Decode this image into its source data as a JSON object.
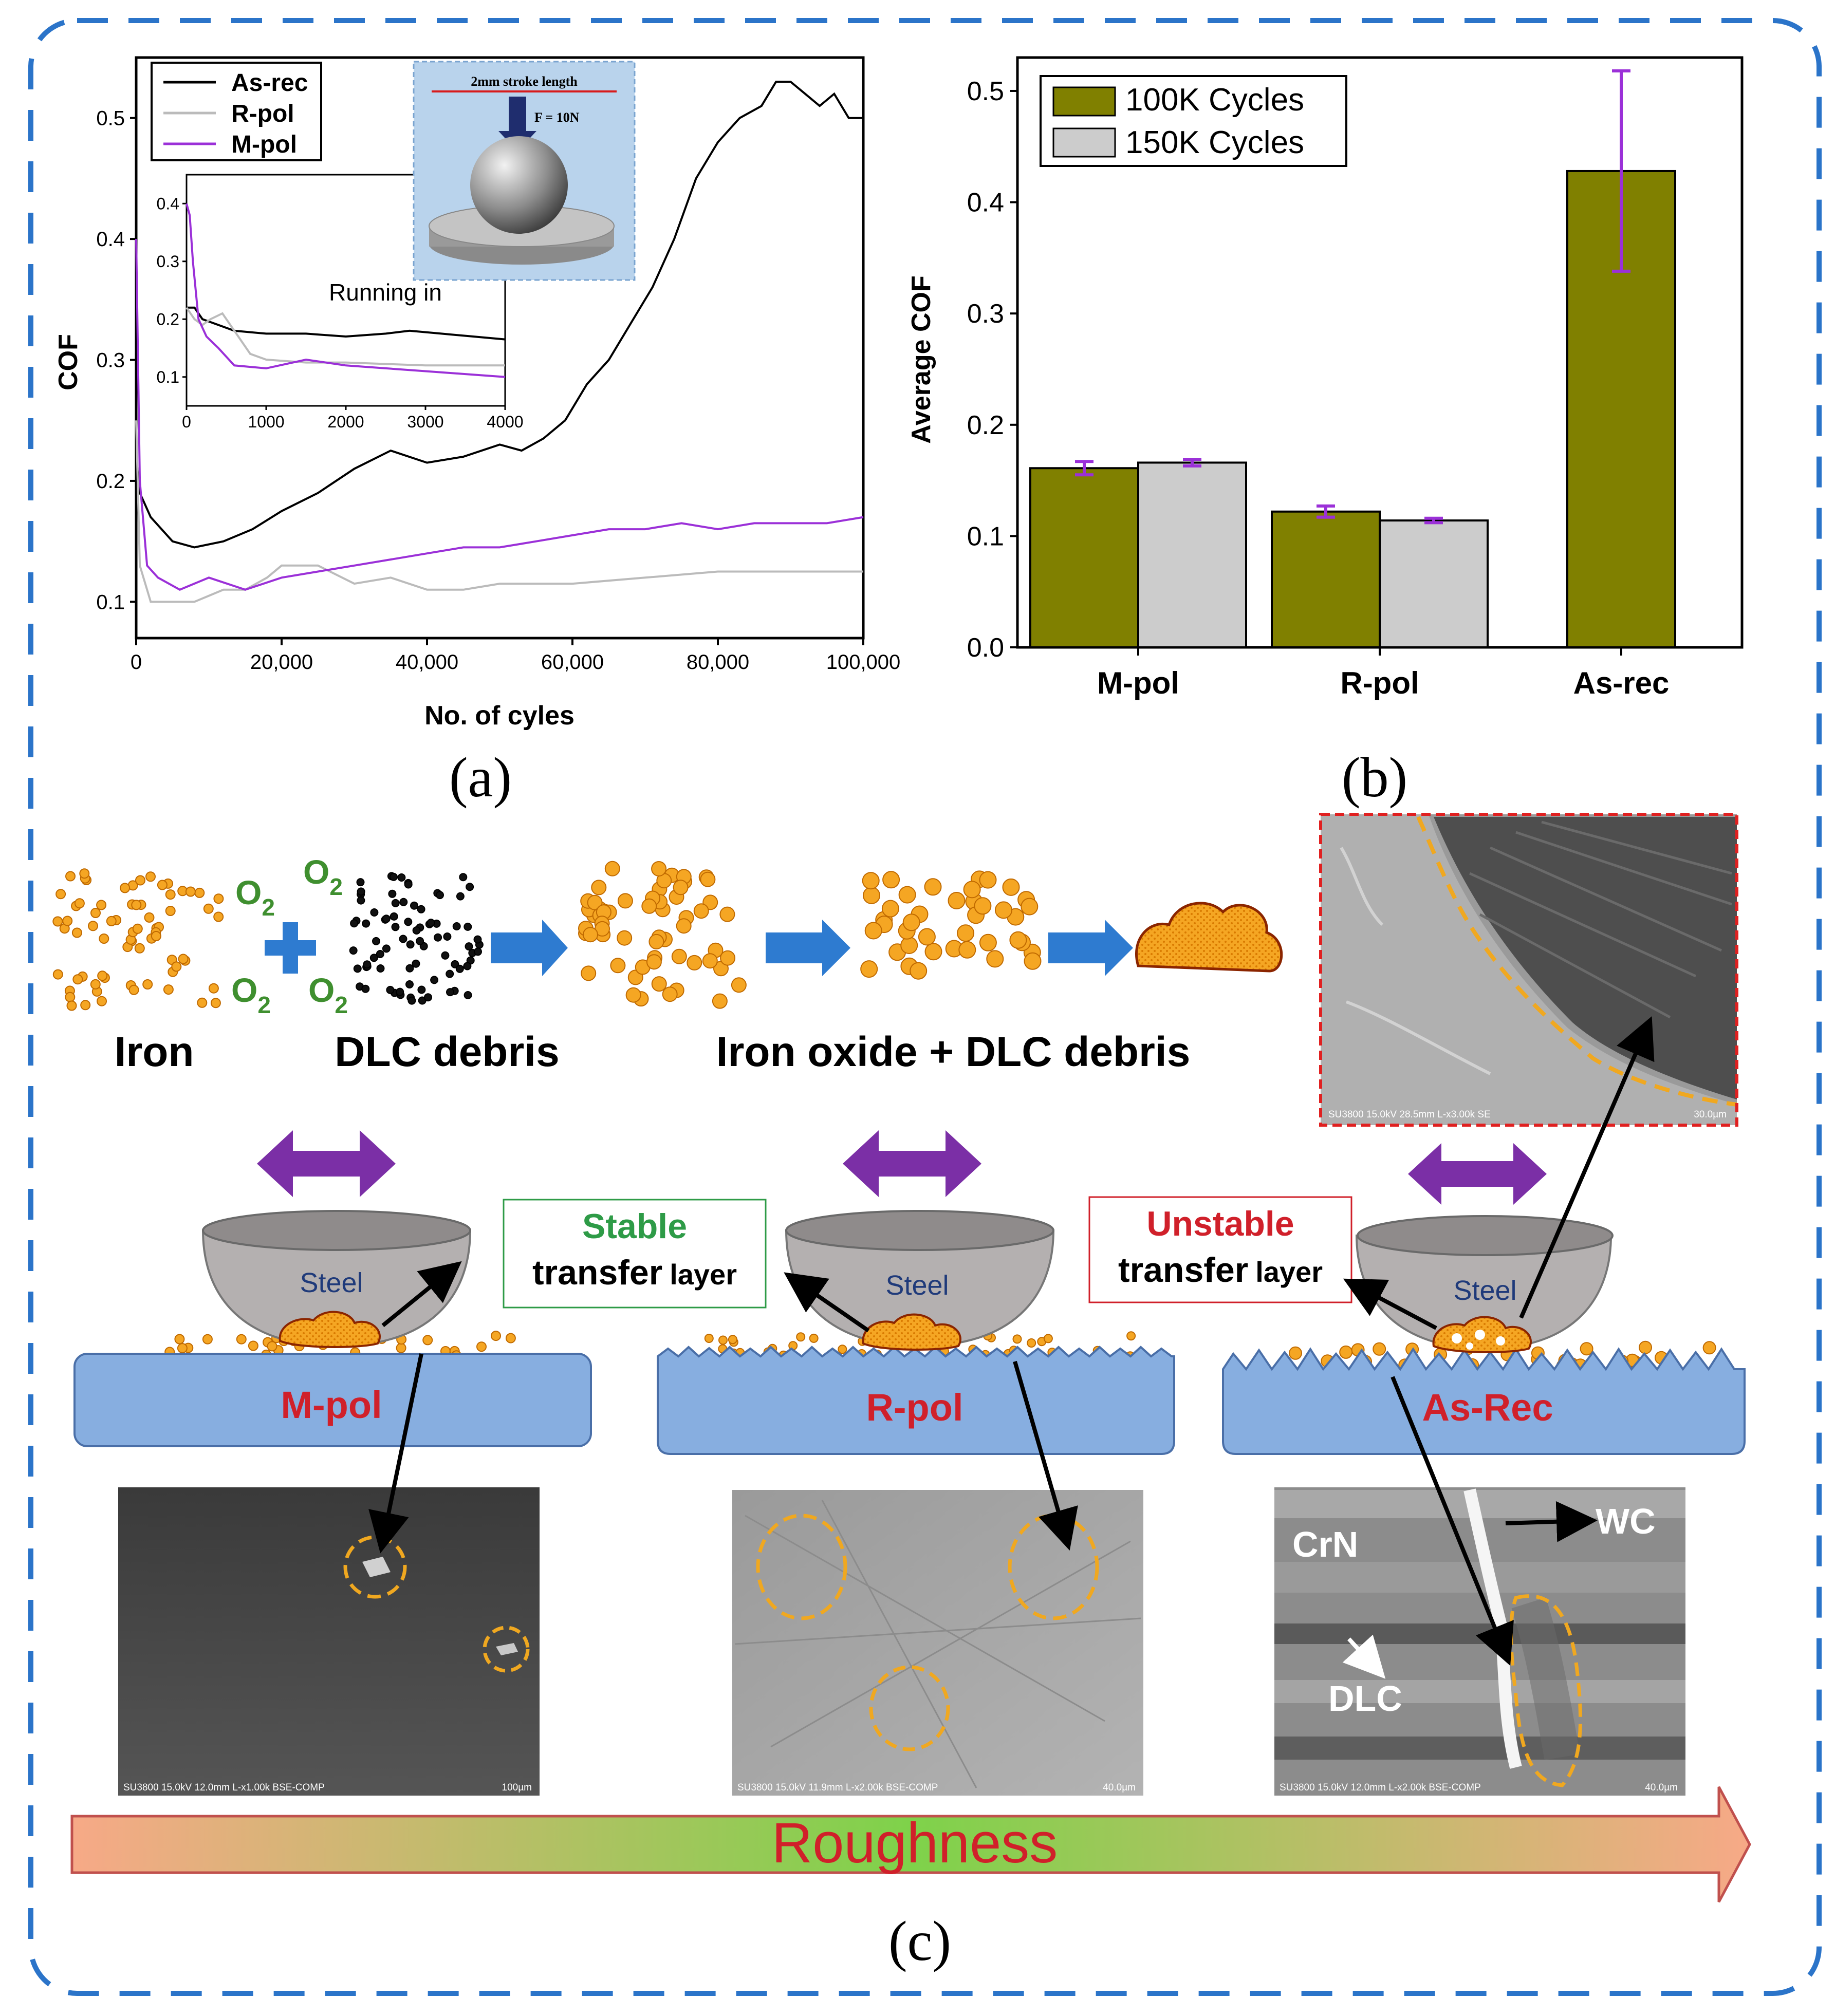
{
  "panel_labels": {
    "a": "(a)",
    "b": "(b)",
    "c": "(c)"
  },
  "chart_data": [
    {
      "id": "a",
      "type": "line",
      "title": "",
      "xlabel": "No. of cyles",
      "ylabel": "COF",
      "xlim": [
        0,
        100000
      ],
      "ylim": [
        0.07,
        0.55
      ],
      "xticks": [
        0,
        20000,
        40000,
        60000,
        80000,
        100000
      ],
      "xtick_labels": [
        "0",
        "20,000",
        "40,000",
        "60,000",
        "80,000",
        "100,000"
      ],
      "yticks": [
        0.1,
        0.2,
        0.3,
        0.4,
        0.5
      ],
      "ytick_labels": [
        "0.1",
        "0.2",
        "0.3",
        "0.4",
        "0.5"
      ],
      "legend": {
        "position": "top-left",
        "entries": [
          "As-rec",
          "R-pol",
          "M-pol"
        ]
      },
      "series": [
        {
          "name": "As-rec",
          "color": "#000000",
          "x": [
            0,
            500,
            2000,
            5000,
            8000,
            12000,
            16000,
            20000,
            25000,
            30000,
            35000,
            40000,
            45000,
            50000,
            53000,
            56000,
            59000,
            62000,
            65000,
            68000,
            71000,
            74000,
            77000,
            80000,
            83000,
            86000,
            88000,
            90000,
            92000,
            94000,
            96000,
            98000,
            100000
          ],
          "y": [
            0.22,
            0.19,
            0.17,
            0.15,
            0.145,
            0.15,
            0.16,
            0.175,
            0.19,
            0.21,
            0.225,
            0.215,
            0.22,
            0.23,
            0.225,
            0.235,
            0.25,
            0.28,
            0.3,
            0.33,
            0.36,
            0.4,
            0.45,
            0.48,
            0.5,
            0.51,
            0.53,
            0.53,
            0.52,
            0.51,
            0.52,
            0.5,
            0.5
          ]
        },
        {
          "name": "R-pol",
          "color": "#bbbbbb",
          "x": [
            0,
            500,
            2000,
            5000,
            8000,
            10000,
            12000,
            15000,
            18000,
            20000,
            25000,
            30000,
            35000,
            40000,
            45000,
            50000,
            60000,
            70000,
            80000,
            90000,
            100000
          ],
          "y": [
            0.25,
            0.13,
            0.1,
            0.1,
            0.1,
            0.105,
            0.11,
            0.11,
            0.12,
            0.13,
            0.13,
            0.115,
            0.12,
            0.11,
            0.11,
            0.115,
            0.115,
            0.12,
            0.125,
            0.125,
            0.125
          ]
        },
        {
          "name": "M-pol",
          "color": "#9b30d8",
          "x": [
            0,
            500,
            1500,
            3000,
            6000,
            10000,
            15000,
            20000,
            25000,
            30000,
            35000,
            40000,
            45000,
            50000,
            55000,
            60000,
            65000,
            70000,
            75000,
            80000,
            85000,
            90000,
            95000,
            100000
          ],
          "y": [
            0.4,
            0.2,
            0.13,
            0.12,
            0.11,
            0.12,
            0.11,
            0.12,
            0.125,
            0.13,
            0.135,
            0.14,
            0.145,
            0.145,
            0.15,
            0.155,
            0.16,
            0.16,
            0.165,
            0.16,
            0.165,
            0.165,
            0.165,
            0.17
          ]
        }
      ],
      "inset_chart": {
        "annotation": "Running in",
        "xlim": [
          0,
          4000
        ],
        "ylim": [
          0.05,
          0.45
        ],
        "xticks": [
          0,
          1000,
          2000,
          3000,
          4000
        ],
        "xtick_labels": [
          "0",
          "1000",
          "2000",
          "3000",
          "4000"
        ],
        "yticks": [
          0.1,
          0.2,
          0.3,
          0.4
        ],
        "ytick_labels": [
          "0.1",
          "0.2",
          "0.3",
          "0.4"
        ],
        "series": [
          {
            "name": "As-rec",
            "color": "#000000",
            "x": [
              0,
              100,
              200,
              400,
              600,
              1000,
              1500,
              2000,
              2500,
              2800,
              3200,
              3600,
              4000
            ],
            "y": [
              0.22,
              0.22,
              0.2,
              0.19,
              0.18,
              0.175,
              0.175,
              0.17,
              0.175,
              0.18,
              0.175,
              0.17,
              0.165
            ]
          },
          {
            "name": "R-pol",
            "color": "#bbbbbb",
            "x": [
              0,
              100,
              200,
              300,
              450,
              600,
              800,
              1000,
              1500,
              2000,
              3000,
              4000
            ],
            "y": [
              0.22,
              0.2,
              0.19,
              0.2,
              0.21,
              0.18,
              0.14,
              0.13,
              0.125,
              0.125,
              0.12,
              0.12
            ]
          },
          {
            "name": "M-pol",
            "color": "#9b30d8",
            "x": [
              0,
              40,
              80,
              150,
              250,
              400,
              600,
              1000,
              1500,
              2000,
              2500,
              3000,
              3500,
              4000
            ],
            "y": [
              0.4,
              0.38,
              0.3,
              0.2,
              0.17,
              0.15,
              0.12,
              0.115,
              0.13,
              0.12,
              0.115,
              0.11,
              0.105,
              0.1
            ]
          }
        ]
      },
      "schematic": {
        "stroke_label": "2mm stroke length",
        "force_label": "F = 10N"
      }
    },
    {
      "id": "b",
      "type": "bar",
      "xlabel": "",
      "ylabel": "Average COF",
      "ylim": [
        0,
        0.53
      ],
      "yticks": [
        0.0,
        0.1,
        0.2,
        0.3,
        0.4,
        0.5
      ],
      "ytick_labels": [
        "0.0",
        "0.1",
        "0.2",
        "0.3",
        "0.4",
        "0.5"
      ],
      "categories": [
        "M-pol",
        "R-pol",
        "As-rec"
      ],
      "legend": {
        "position": "top-left"
      },
      "series": [
        {
          "name": "100K Cycles",
          "color": "#808000",
          "values": [
            0.161,
            0.122,
            0.428
          ],
          "errors": [
            0.006,
            0.005,
            0.09
          ]
        },
        {
          "name": "150K Cycles",
          "color": "#cccccc",
          "values": [
            0.166,
            0.114,
            null
          ],
          "errors": [
            0.003,
            0.002,
            null
          ]
        }
      ]
    }
  ],
  "schematic_c": {
    "labels": {
      "iron": "Iron",
      "dlc_debris": "DLC debris",
      "iron_oxide": "Iron oxide + DLC debris",
      "o2": "O",
      "o2_sub": "2",
      "steel": "Steel",
      "stable_word": "Stable",
      "unstable_word": "Unstable",
      "transfer": "transfer",
      "layer": "layer",
      "mpol": "M-pol",
      "rpol": "R-pol",
      "asrec": "As-Rec",
      "wc": "WC",
      "crn": "CrN",
      "dlc": "DLC",
      "roughness": "Roughness"
    },
    "sem_captions": {
      "top": "SU3800 15.0kV 28.5mm L-x3.00k SE",
      "top_scale": "30.0µm",
      "mpol": "SU3800 15.0kV 12.0mm L-x1.00k BSE-COMP",
      "mpol_scale": "100µm",
      "rpol": "SU3800 15.0kV 11.9mm L-x2.00k BSE-COMP",
      "rpol_scale": "40.0µm",
      "asrec": "SU3800 15.0kV 12.0mm L-x2.00k BSE-COMP",
      "asrec_scale": "40.0µm"
    },
    "colors": {
      "green_text": "#2e9b47",
      "red_text": "#d0202a",
      "o2_color": "#3f8f2f",
      "debris_orange": "#f0a020",
      "substrate": "#87aee0",
      "arrow_blue": "#2e7bd0",
      "arrow_purple": "#7b2fa6"
    }
  }
}
